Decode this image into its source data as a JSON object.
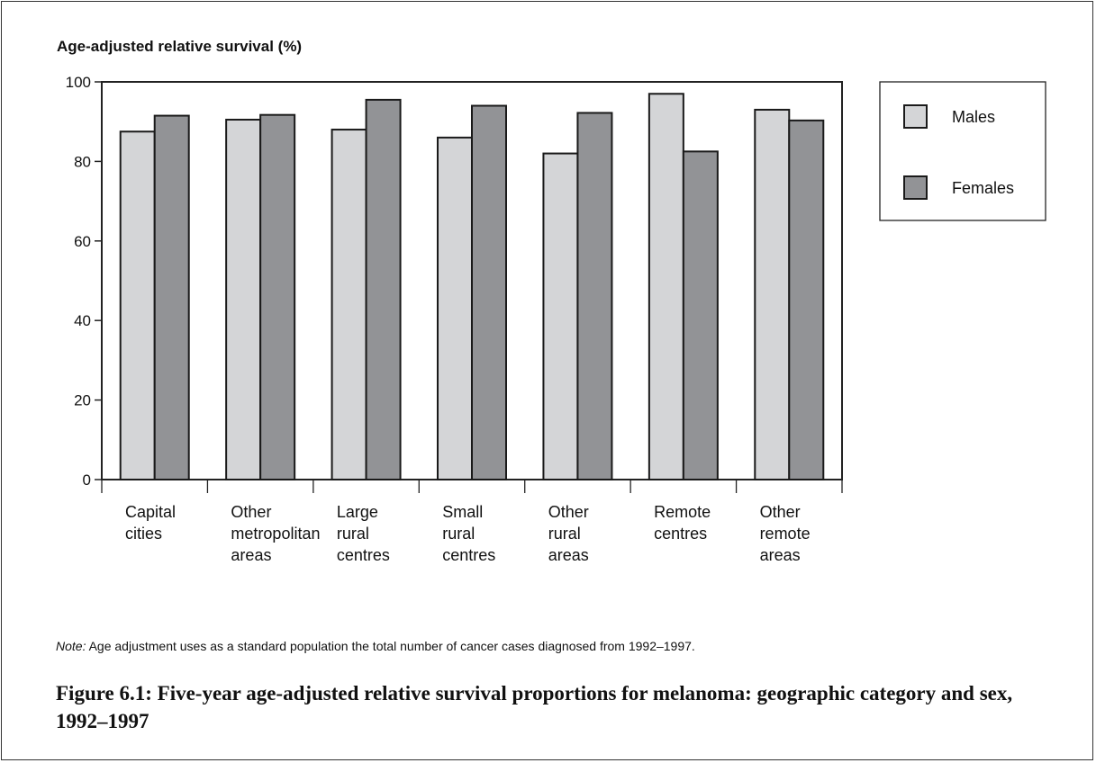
{
  "chart_data": {
    "type": "bar",
    "title": "Age-adjusted relative survival (%)",
    "xlabel": "",
    "ylabel": "Age-adjusted relative survival (%)",
    "ylim": [
      0,
      100
    ],
    "yticks": [
      0,
      20,
      40,
      60,
      80,
      100
    ],
    "grid": false,
    "legend_position": "right",
    "categories": [
      [
        "Capital",
        "cities"
      ],
      [
        "Other",
        "metropolitan",
        "areas"
      ],
      [
        "Large",
        "rural",
        "centres"
      ],
      [
        "Small",
        "rural",
        "centres"
      ],
      [
        "Other",
        "rural",
        "areas"
      ],
      [
        "Remote",
        "centres"
      ],
      [
        "Other",
        "remote",
        "areas"
      ]
    ],
    "series": [
      {
        "name": "Males",
        "color": "#d4d5d7",
        "values": [
          87.5,
          90.5,
          88,
          86,
          82,
          97,
          93
        ]
      },
      {
        "name": "Females",
        "color": "#929396",
        "values": [
          91.5,
          91.7,
          95.5,
          94,
          92.2,
          82.5,
          90.3
        ]
      }
    ]
  },
  "note": {
    "label": "Note:",
    "text": " Age adjustment uses as a standard population the total number of cancer cases diagnosed from 1992–1997."
  },
  "caption": "Figure 6.1: Five-year age-adjusted relative survival proportions for melanoma: geographic category and sex, 1992–1997"
}
